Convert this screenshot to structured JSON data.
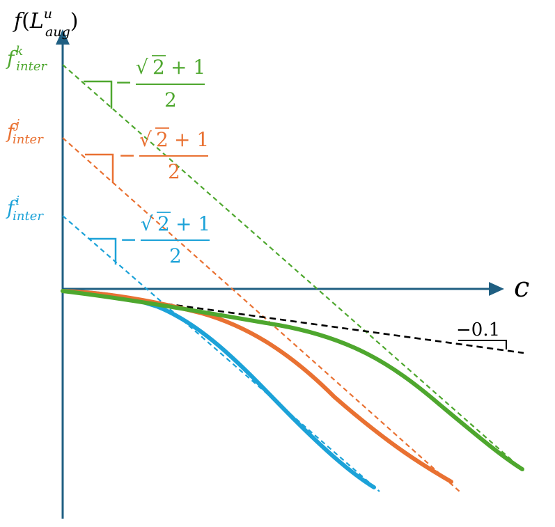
{
  "axes": {
    "y_label": {
      "f": "f",
      "open": "(",
      "base": "L",
      "sup": "u",
      "sub": "aug",
      "close": ")"
    },
    "x_label": "c"
  },
  "intercepts": [
    {
      "id": "k",
      "base": "f",
      "sup": "k",
      "sub": "inter",
      "color": "#4ea72e"
    },
    {
      "id": "j",
      "base": "f",
      "sup": "j",
      "sub": "inter",
      "color": "#e97132"
    },
    {
      "id": "i",
      "base": "f",
      "sup": "i",
      "sub": "inter",
      "color": "#1ca2d8"
    }
  ],
  "slope_labels": [
    {
      "id": "k",
      "sign": "−",
      "sqrt": "√",
      "radicand": "2",
      "plus": "+ 1",
      "den": "2",
      "color": "#4ea72e"
    },
    {
      "id": "j",
      "sign": "−",
      "sqrt": "√",
      "radicand": "2",
      "plus": "+ 1",
      "den": "2",
      "color": "#e97132"
    },
    {
      "id": "i",
      "sign": "−",
      "sqrt": "√",
      "radicand": "2",
      "plus": "+ 1",
      "den": "2",
      "color": "#1ca2d8"
    }
  ],
  "shallow_slope": {
    "label": "−0.1",
    "color": "#000000"
  },
  "colors": {
    "axis": "#1f5f82",
    "green": "#4ea72e",
    "orange": "#e97132",
    "blue": "#1ca2d8",
    "black": "#000000"
  }
}
